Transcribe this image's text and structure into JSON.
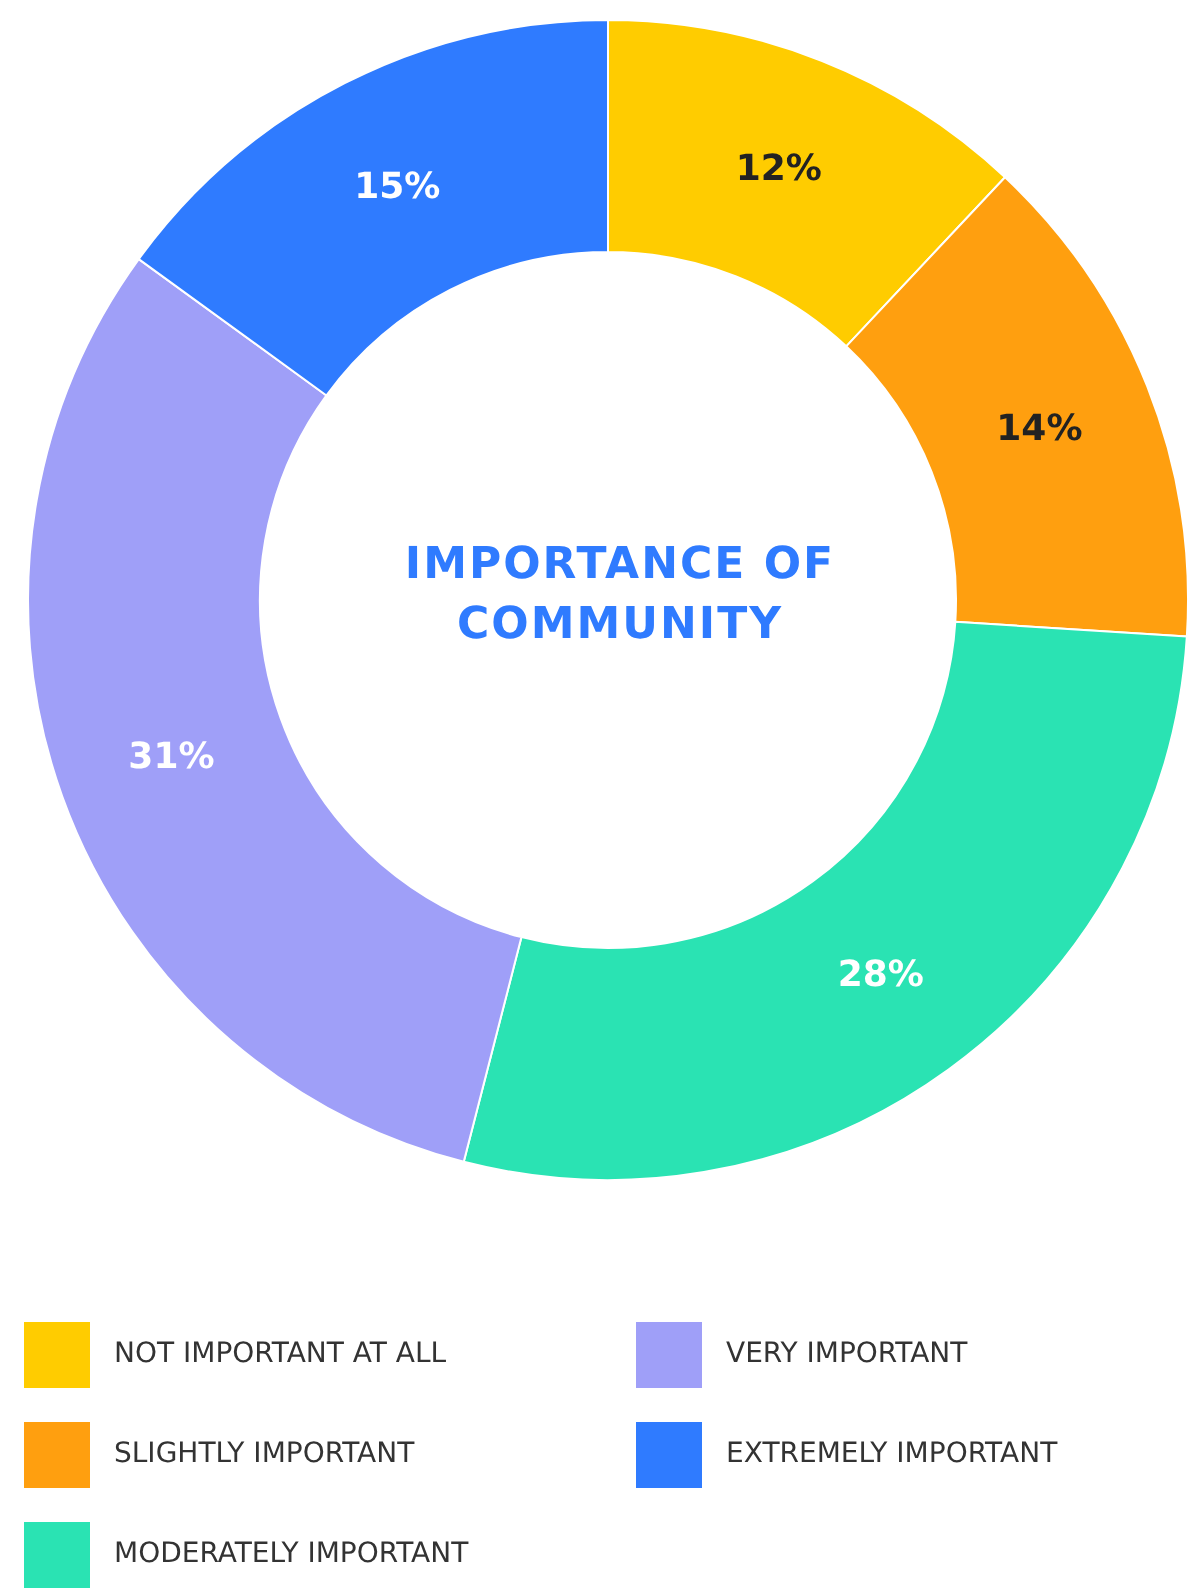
{
  "chart_data": {
    "type": "donut",
    "title": "IMPORTANCE OF COMMUNITY",
    "categories": [
      "NOT IMPORTANT AT ALL",
      "SLIGHTLY IMPORTANT",
      "MODERATELY IMPORTANT",
      "VERY IMPORTANT",
      "EXTREMELY IMPORTANT"
    ],
    "values": [
      12,
      14,
      28,
      31,
      15
    ],
    "colors": [
      "#ffcc00",
      "#ff9f0f",
      "#2ae3b3",
      "#9f9ff8",
      "#2f7bff"
    ],
    "value_labels": [
      "12%",
      "14%",
      "28%",
      "31%",
      "15%"
    ],
    "legend": "bottom"
  }
}
